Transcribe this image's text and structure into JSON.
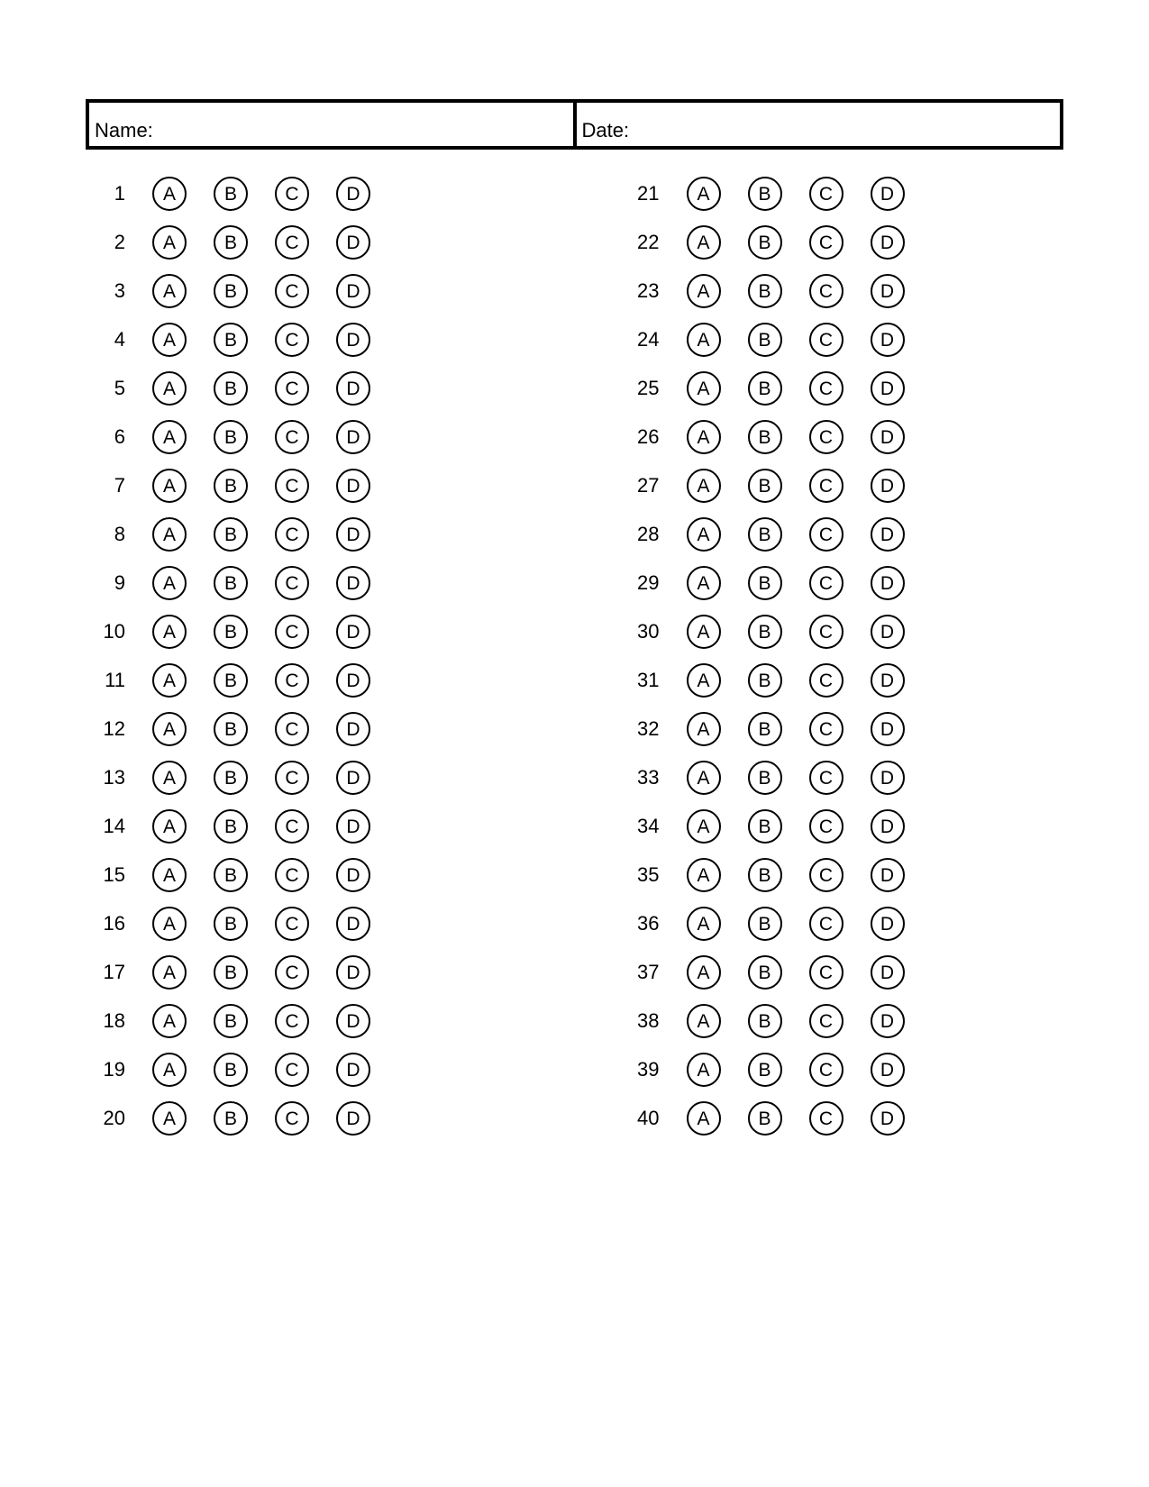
{
  "header": {
    "name_label": "Name:",
    "date_label": "Date:"
  },
  "answersheet": {
    "options": [
      "A",
      "B",
      "C",
      "D"
    ],
    "columns": [
      {
        "start": 1,
        "end": 20
      },
      {
        "start": 21,
        "end": 40
      }
    ],
    "bubble_border_color": "#000000",
    "text_color": "#000000",
    "background_color": "#ffffff"
  }
}
